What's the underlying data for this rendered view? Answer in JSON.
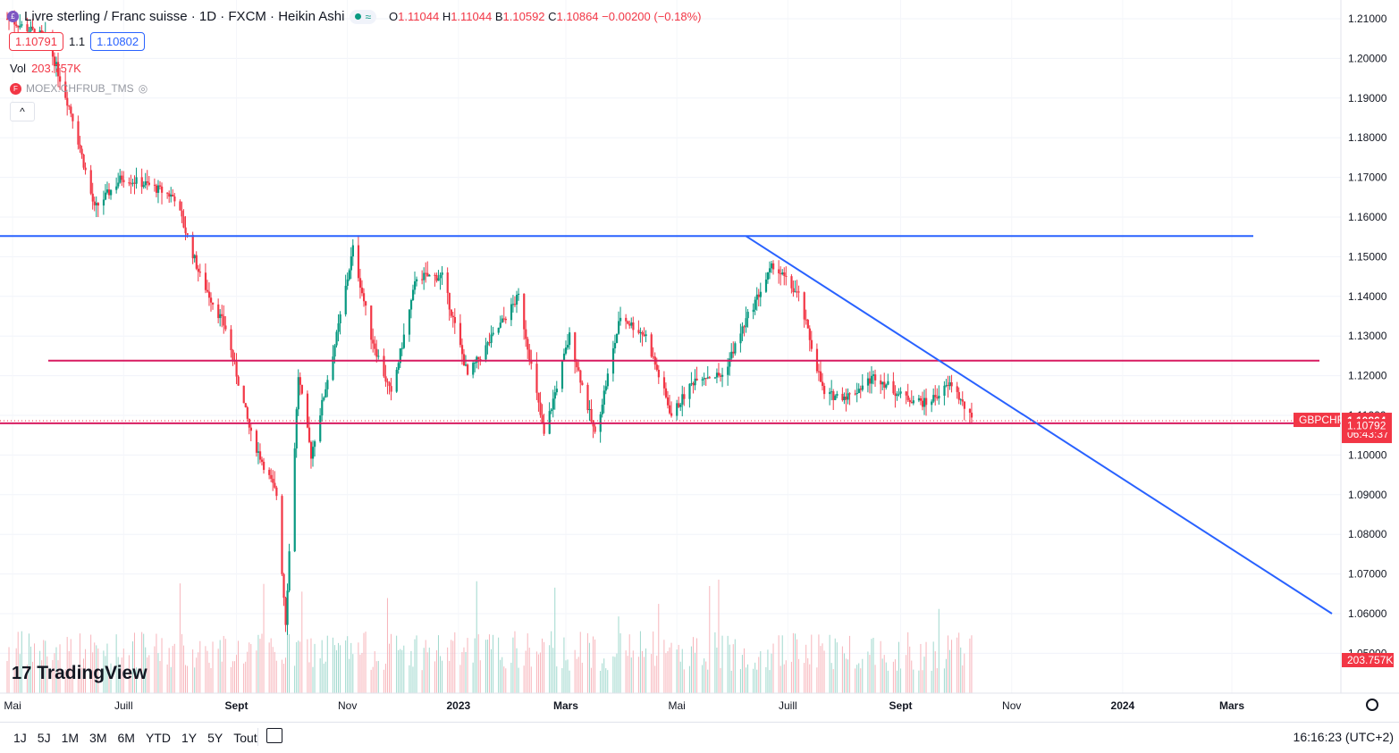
{
  "header": {
    "title": "Livre sterling / Franc suisse · 1D · FXCM · Heikin Ashi",
    "approx_symbol": "≈",
    "open_label": "O",
    "open": "1.11044",
    "high_label": "H",
    "high": "1.11044",
    "low_label": "B",
    "low": "1.10592",
    "close_label": "C",
    "close": "1.10864",
    "change": "−0.00200 (−0.18%)",
    "bid": "1.10791",
    "spread": "1.1",
    "ask": "1.10802",
    "vol_label": "Vol",
    "vol_value": "203.757K",
    "overlay_symbol": "MOEX:CHFRUB_TMS"
  },
  "price_axis": {
    "ticks": [
      "1.21000",
      "1.20000",
      "1.19000",
      "1.18000",
      "1.17000",
      "1.16000",
      "1.15000",
      "1.14000",
      "1.13000",
      "1.12000",
      "1.11000",
      "1.10000",
      "1.09000",
      "1.08000",
      "1.07000",
      "1.06000",
      "1.05000"
    ],
    "current_symbol": "GBPCHF",
    "current_price": "1.10864",
    "countdown": "06:43:37",
    "bid_tag": "1.10792",
    "volume_tag": "203.757K"
  },
  "time_axis": [
    "Mai",
    "Juill",
    "Sept",
    "Nov",
    "2023",
    "Mars",
    "Mai",
    "Juill",
    "Sept",
    "Nov",
    "2024",
    "Mars"
  ],
  "bottom_bar": {
    "ranges": [
      "1J",
      "5J",
      "1M",
      "3M",
      "6M",
      "YTD",
      "1Y",
      "5Y",
      "Tout"
    ],
    "clock": "16:16:23 (UTC+2)"
  },
  "logo_text": "TradingView",
  "colors": {
    "up": "#089981",
    "down": "#f23645",
    "trend_blue": "#2962ff",
    "support_red": "#d81b60"
  },
  "chart_data": {
    "type": "candlestick",
    "instrument": "GBPCHF",
    "timeframe": "1D",
    "style": "Heikin Ashi",
    "ylim": [
      1.05,
      1.215
    ],
    "path_points": [
      {
        "x": "2022-04-28",
        "y": 1.21
      },
      {
        "x": "2022-05-20",
        "y": 1.205
      },
      {
        "x": "2022-06-03",
        "y": 1.185
      },
      {
        "x": "2022-06-15",
        "y": 1.162
      },
      {
        "x": "2022-06-30",
        "y": 1.17
      },
      {
        "x": "2022-07-15",
        "y": 1.168
      },
      {
        "x": "2022-07-29",
        "y": 1.165
      },
      {
        "x": "2022-08-12",
        "y": 1.145
      },
      {
        "x": "2022-08-26",
        "y": 1.132
      },
      {
        "x": "2022-09-09",
        "y": 1.105
      },
      {
        "x": "2022-09-23",
        "y": 1.09
      },
      {
        "x": "2022-09-28",
        "y": 1.058
      },
      {
        "x": "2022-10-05",
        "y": 1.12
      },
      {
        "x": "2022-10-12",
        "y": 1.1
      },
      {
        "x": "2022-10-26",
        "y": 1.13
      },
      {
        "x": "2022-11-04",
        "y": 1.152
      },
      {
        "x": "2022-11-14",
        "y": 1.13
      },
      {
        "x": "2022-11-25",
        "y": 1.115
      },
      {
        "x": "2022-12-09",
        "y": 1.145
      },
      {
        "x": "2022-12-23",
        "y": 1.145
      },
      {
        "x": "2023-01-06",
        "y": 1.12
      },
      {
        "x": "2023-01-20",
        "y": 1.13
      },
      {
        "x": "2023-02-03",
        "y": 1.14
      },
      {
        "x": "2023-02-17",
        "y": 1.105
      },
      {
        "x": "2023-03-03",
        "y": 1.13
      },
      {
        "x": "2023-03-17",
        "y": 1.105
      },
      {
        "x": "2023-03-31",
        "y": 1.135
      },
      {
        "x": "2023-04-14",
        "y": 1.13
      },
      {
        "x": "2023-04-28",
        "y": 1.11
      },
      {
        "x": "2023-05-12",
        "y": 1.12
      },
      {
        "x": "2023-05-26",
        "y": 1.12
      },
      {
        "x": "2023-06-09",
        "y": 1.135
      },
      {
        "x": "2023-06-23",
        "y": 1.148
      },
      {
        "x": "2023-07-07",
        "y": 1.14
      },
      {
        "x": "2023-07-21",
        "y": 1.115
      },
      {
        "x": "2023-08-04",
        "y": 1.115
      },
      {
        "x": "2023-08-18",
        "y": 1.12
      },
      {
        "x": "2023-09-01",
        "y": 1.115
      },
      {
        "x": "2023-09-15",
        "y": 1.113
      },
      {
        "x": "2023-09-29",
        "y": 1.118
      },
      {
        "x": "2023-10-10",
        "y": 1.1086
      }
    ],
    "drawings": [
      {
        "type": "horizontal-line",
        "name": "resistance",
        "y": 1.1552,
        "color": "#2962ff"
      },
      {
        "type": "horizontal-line",
        "name": "mid-level",
        "y": 1.1238,
        "color": "#d81b60"
      },
      {
        "type": "horizontal-line",
        "name": "support",
        "y": 1.108,
        "color": "#d81b60"
      },
      {
        "type": "trend-line",
        "name": "descending-trend",
        "from": {
          "x": "2023-06-08",
          "y": 1.1552
        },
        "to": {
          "x": "2024-04-25",
          "y": 1.06
        },
        "color": "#2962ff"
      }
    ]
  }
}
